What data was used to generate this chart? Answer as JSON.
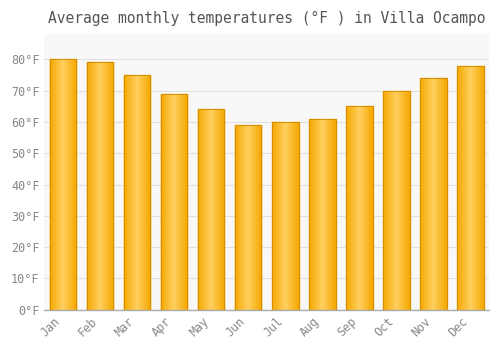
{
  "title": "Average monthly temperatures (°F ) in Villa Ocampo",
  "months": [
    "Jan",
    "Feb",
    "Mar",
    "Apr",
    "May",
    "Jun",
    "Jul",
    "Aug",
    "Sep",
    "Oct",
    "Nov",
    "Dec"
  ],
  "values": [
    80,
    79,
    75,
    69,
    64,
    59,
    60,
    61,
    65,
    70,
    74,
    78
  ],
  "bar_color_left": "#F5A800",
  "bar_color_center": "#FFD060",
  "bar_color_right": "#F5A800",
  "bar_edge_color": "#CC8800",
  "background_color": "#FFFFFF",
  "plot_bg_color": "#F8F8F8",
  "grid_color": "#E0E0E0",
  "text_color": "#888888",
  "title_color": "#555555",
  "ylim": [
    0,
    88
  ],
  "yticks": [
    0,
    10,
    20,
    30,
    40,
    50,
    60,
    70,
    80
  ],
  "title_fontsize": 10.5,
  "tick_fontsize": 8.5,
  "font_family": "monospace"
}
